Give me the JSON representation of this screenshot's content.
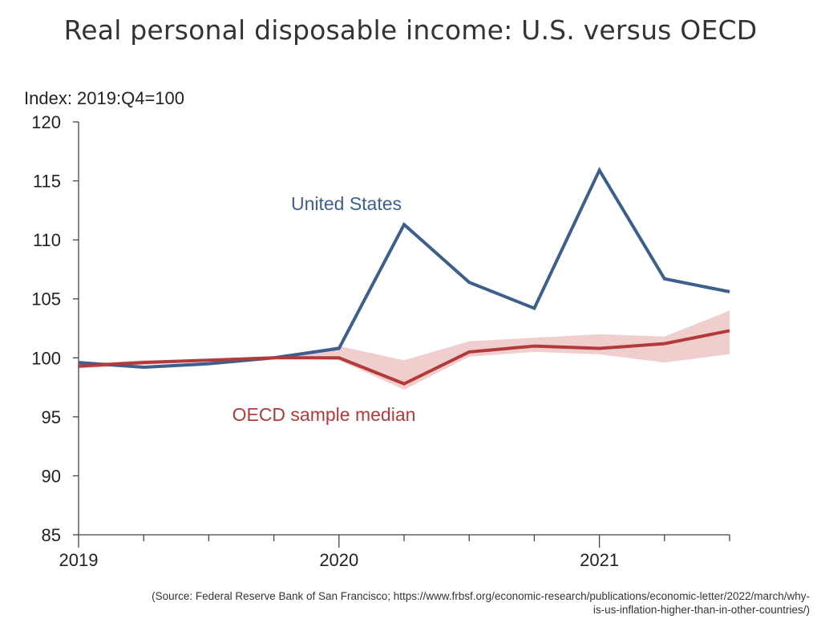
{
  "page": {
    "title": "Real personal disposable income: U.S. versus OECD",
    "source_line_1": "(Source: Federal Reserve Bank of San Francisco; https://www.frbsf.org/economic-research/publications/economic-letter/2022/march/why-",
    "source_line_2": "is-us-inflation-higher-than-in-other-countries/)"
  },
  "chart_data": {
    "type": "line",
    "ylabel": "Index: 2019:Q4=100",
    "ylim": [
      85,
      120
    ],
    "yticks": [
      85,
      90,
      95,
      100,
      105,
      110,
      115,
      120
    ],
    "x": [
      "2019:Q1",
      "2019:Q2",
      "2019:Q3",
      "2019:Q4",
      "2020:Q1",
      "2020:Q2",
      "2020:Q3",
      "2020:Q4",
      "2021:Q1",
      "2021:Q2",
      "2021:Q3"
    ],
    "xtick_labels": [
      "2019",
      "2020",
      "2021"
    ],
    "xtick_positions": [
      "2019:Q1",
      "2020:Q1",
      "2021:Q1"
    ],
    "grid": false,
    "series": [
      {
        "name": "United States",
        "color": "#3d5f8c",
        "values": [
          99.6,
          99.2,
          99.5,
          100.0,
          100.8,
          111.3,
          106.4,
          104.2,
          115.9,
          106.7,
          105.6
        ]
      },
      {
        "name": "OECD sample median",
        "color": "#b23a3a",
        "band_color": "#efc9c9",
        "values": [
          99.3,
          99.6,
          99.8,
          100.0,
          100.0,
          97.8,
          100.5,
          101.0,
          100.8,
          101.2,
          102.3
        ],
        "band_low": [
          99.1,
          99.4,
          99.7,
          100.0,
          99.8,
          97.3,
          100.1,
          100.5,
          100.3,
          99.6,
          100.3
        ],
        "band_high": [
          99.5,
          99.8,
          99.9,
          100.0,
          101.0,
          99.8,
          101.4,
          101.7,
          102.0,
          101.8,
          104.0
        ]
      }
    ]
  }
}
